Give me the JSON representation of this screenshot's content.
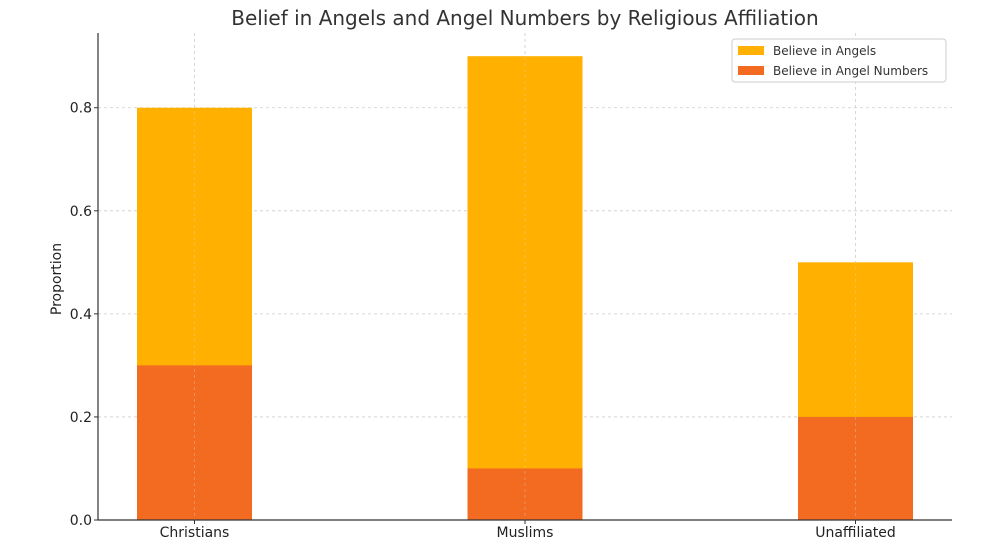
{
  "chart_data": {
    "type": "bar",
    "stacked": false,
    "overlay": true,
    "title": "Belief in Angels and Angel Numbers by Religious Affiliation",
    "xlabel": "",
    "ylabel": "Proportion",
    "categories": [
      "Christians",
      "Muslims",
      "Unaffiliated"
    ],
    "series": [
      {
        "name": "Believe in Angels",
        "values": [
          0.8,
          0.9,
          0.5
        ],
        "color": "#FFB000"
      },
      {
        "name": "Believe in Angel Numbers",
        "values": [
          0.3,
          0.1,
          0.2
        ],
        "color": "#F26B21"
      }
    ],
    "ylim": [
      0,
      0.945
    ],
    "yticks": [
      0.0,
      0.2,
      0.4,
      0.6,
      0.8
    ],
    "ytick_labels": [
      "0.0",
      "0.2",
      "0.4",
      "0.6",
      "0.8"
    ],
    "grid": true,
    "legend_position": "top-right"
  }
}
